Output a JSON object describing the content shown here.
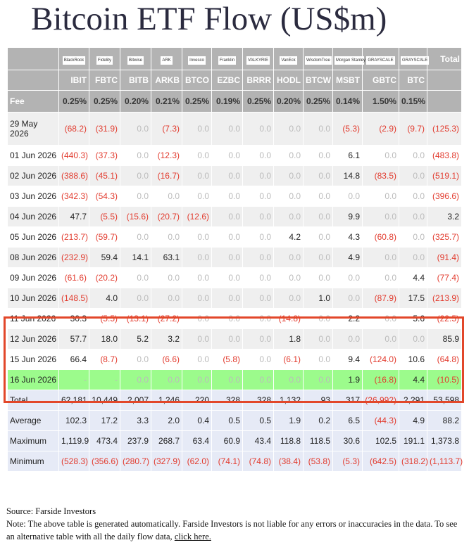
{
  "header": {
    "title": "Bitcoin ETF Flow (US$m)"
  },
  "table": {
    "logos": [
      "BlackRock",
      "Fidelity",
      "Bitwise",
      "ARK",
      "Invesco",
      "Franklin",
      "VALKYRIE",
      "VanEck",
      "WisdomTree",
      "Morgan Stanley",
      "GRAYSCALE",
      "GRAYSCALE"
    ],
    "total_header": "Total",
    "columns": [
      "IBIT",
      "FBTC",
      "BITB",
      "ARKB",
      "BTCO",
      "EZBC",
      "BRRR",
      "HODL",
      "BTCW",
      "MSBT",
      "GBTC",
      "BTC"
    ],
    "fee_label": "Fee",
    "fees": [
      "0.25%",
      "0.25%",
      "0.20%",
      "0.21%",
      "0.25%",
      "0.19%",
      "0.25%",
      "0.20%",
      "0.25%",
      "0.14%",
      "1.50%",
      "0.15%"
    ],
    "rows": [
      {
        "label": "29 May 2026",
        "values": [
          "(68.2)",
          "(31.9)",
          "0.0",
          "(7.3)",
          "0.0",
          "0.0",
          "0.0",
          "0.0",
          "0.0",
          "(5.3)",
          "(2.9)",
          "(9.7)",
          "(125.3)"
        ]
      },
      {
        "label": "01 Jun 2026",
        "values": [
          "(440.3)",
          "(37.3)",
          "0.0",
          "(12.3)",
          "0.0",
          "0.0",
          "0.0",
          "0.0",
          "0.0",
          "6.1",
          "0.0",
          "0.0",
          "(483.8)"
        ]
      },
      {
        "label": "02 Jun 2026",
        "values": [
          "(388.6)",
          "(45.1)",
          "0.0",
          "(16.7)",
          "0.0",
          "0.0",
          "0.0",
          "0.0",
          "0.0",
          "14.8",
          "(83.5)",
          "0.0",
          "(519.1)"
        ]
      },
      {
        "label": "03 Jun 2026",
        "values": [
          "(342.3)",
          "(54.3)",
          "0.0",
          "0.0",
          "0.0",
          "0.0",
          "0.0",
          "0.0",
          "0.0",
          "0.0",
          "0.0",
          "0.0",
          "(396.6)"
        ]
      },
      {
        "label": "04 Jun 2026",
        "values": [
          "47.7",
          "(5.5)",
          "(15.6)",
          "(20.7)",
          "(12.6)",
          "0.0",
          "0.0",
          "0.0",
          "0.0",
          "9.9",
          "0.0",
          "0.0",
          "3.2"
        ]
      },
      {
        "label": "05 Jun 2026",
        "values": [
          "(213.7)",
          "(59.7)",
          "0.0",
          "0.0",
          "0.0",
          "0.0",
          "0.0",
          "4.2",
          "0.0",
          "4.3",
          "(60.8)",
          "0.0",
          "(325.7)"
        ]
      },
      {
        "label": "08 Jun 2026",
        "values": [
          "(232.9)",
          "59.4",
          "14.1",
          "63.1",
          "0.0",
          "0.0",
          "0.0",
          "0.0",
          "0.0",
          "4.9",
          "0.0",
          "0.0",
          "(91.4)"
        ]
      },
      {
        "label": "09 Jun 2026",
        "values": [
          "(61.6)",
          "(20.2)",
          "0.0",
          "0.0",
          "0.0",
          "0.0",
          "0.0",
          "0.0",
          "0.0",
          "0.0",
          "0.0",
          "4.4",
          "(77.4)"
        ]
      },
      {
        "label": "10 Jun 2026",
        "values": [
          "(148.5)",
          "4.0",
          "0.0",
          "0.0",
          "0.0",
          "0.0",
          "0.0",
          "0.0",
          "1.0",
          "0.0",
          "(87.9)",
          "17.5",
          "(213.9)"
        ]
      },
      {
        "label": "11 Jun 2026",
        "values": [
          "30.3",
          "(5.5)",
          "(13.1)",
          "(27.2)",
          "0.0",
          "0.0",
          "0.0",
          "(14.8)",
          "0.0",
          "2.2",
          "0.0",
          "5.6",
          "(22.5)"
        ]
      },
      {
        "label": "12 Jun 2026",
        "values": [
          "57.7",
          "18.0",
          "5.2",
          "3.2",
          "0.0",
          "0.0",
          "0.0",
          "1.8",
          "0.0",
          "0.0",
          "0.0",
          "0.0",
          "85.9"
        ]
      },
      {
        "label": "15 Jun 2026",
        "values": [
          "66.4",
          "(8.7)",
          "0.0",
          "(6.6)",
          "0.0",
          "(5.8)",
          "0.0",
          "(6.1)",
          "0.0",
          "9.4",
          "(124.0)",
          "10.6",
          "(64.8)"
        ]
      },
      {
        "label": "16 Jun 2026",
        "values": [
          "-",
          "-",
          "0.0",
          "0.0",
          "0.0",
          "0.0",
          "0.0",
          "0.0",
          "0.0",
          "1.9",
          "(16.8)",
          "4.4",
          "(10.5)"
        ]
      }
    ],
    "stats": [
      {
        "label": "Total",
        "values": [
          "62,181",
          "10,449",
          "2,007",
          "1,246",
          "220",
          "328",
          "328",
          "1,132",
          "93",
          "317",
          "(26,992)",
          "2,291",
          "53,598"
        ]
      },
      {
        "label": "Average",
        "values": [
          "102.3",
          "17.2",
          "3.3",
          "2.0",
          "0.4",
          "0.5",
          "0.5",
          "1.9",
          "0.2",
          "6.5",
          "(44.3)",
          "4.9",
          "88.2"
        ]
      },
      {
        "label": "Maximum",
        "values": [
          "1,119.9",
          "473.4",
          "237.9",
          "268.7",
          "63.4",
          "60.9",
          "43.4",
          "118.8",
          "118.5",
          "30.6",
          "102.5",
          "191.1",
          "1,373.8"
        ]
      },
      {
        "label": "Minimum",
        "values": [
          "(528.3)",
          "(356.6)",
          "(280.7)",
          "(327.9)",
          "(62.0)",
          "(74.1)",
          "(74.8)",
          "(38.4)",
          "(53.8)",
          "(5.3)",
          "(642.5)",
          "(318.2)",
          "(1,113.7)"
        ]
      }
    ]
  },
  "footer": {
    "source": "Source: Farside Investors",
    "note": "Note: The above table is generated automatically. Farside Investors is not liable for any errors or inaccuracies in the data. To see an alternative table with all the daily flow data,",
    "link": "click here."
  }
}
